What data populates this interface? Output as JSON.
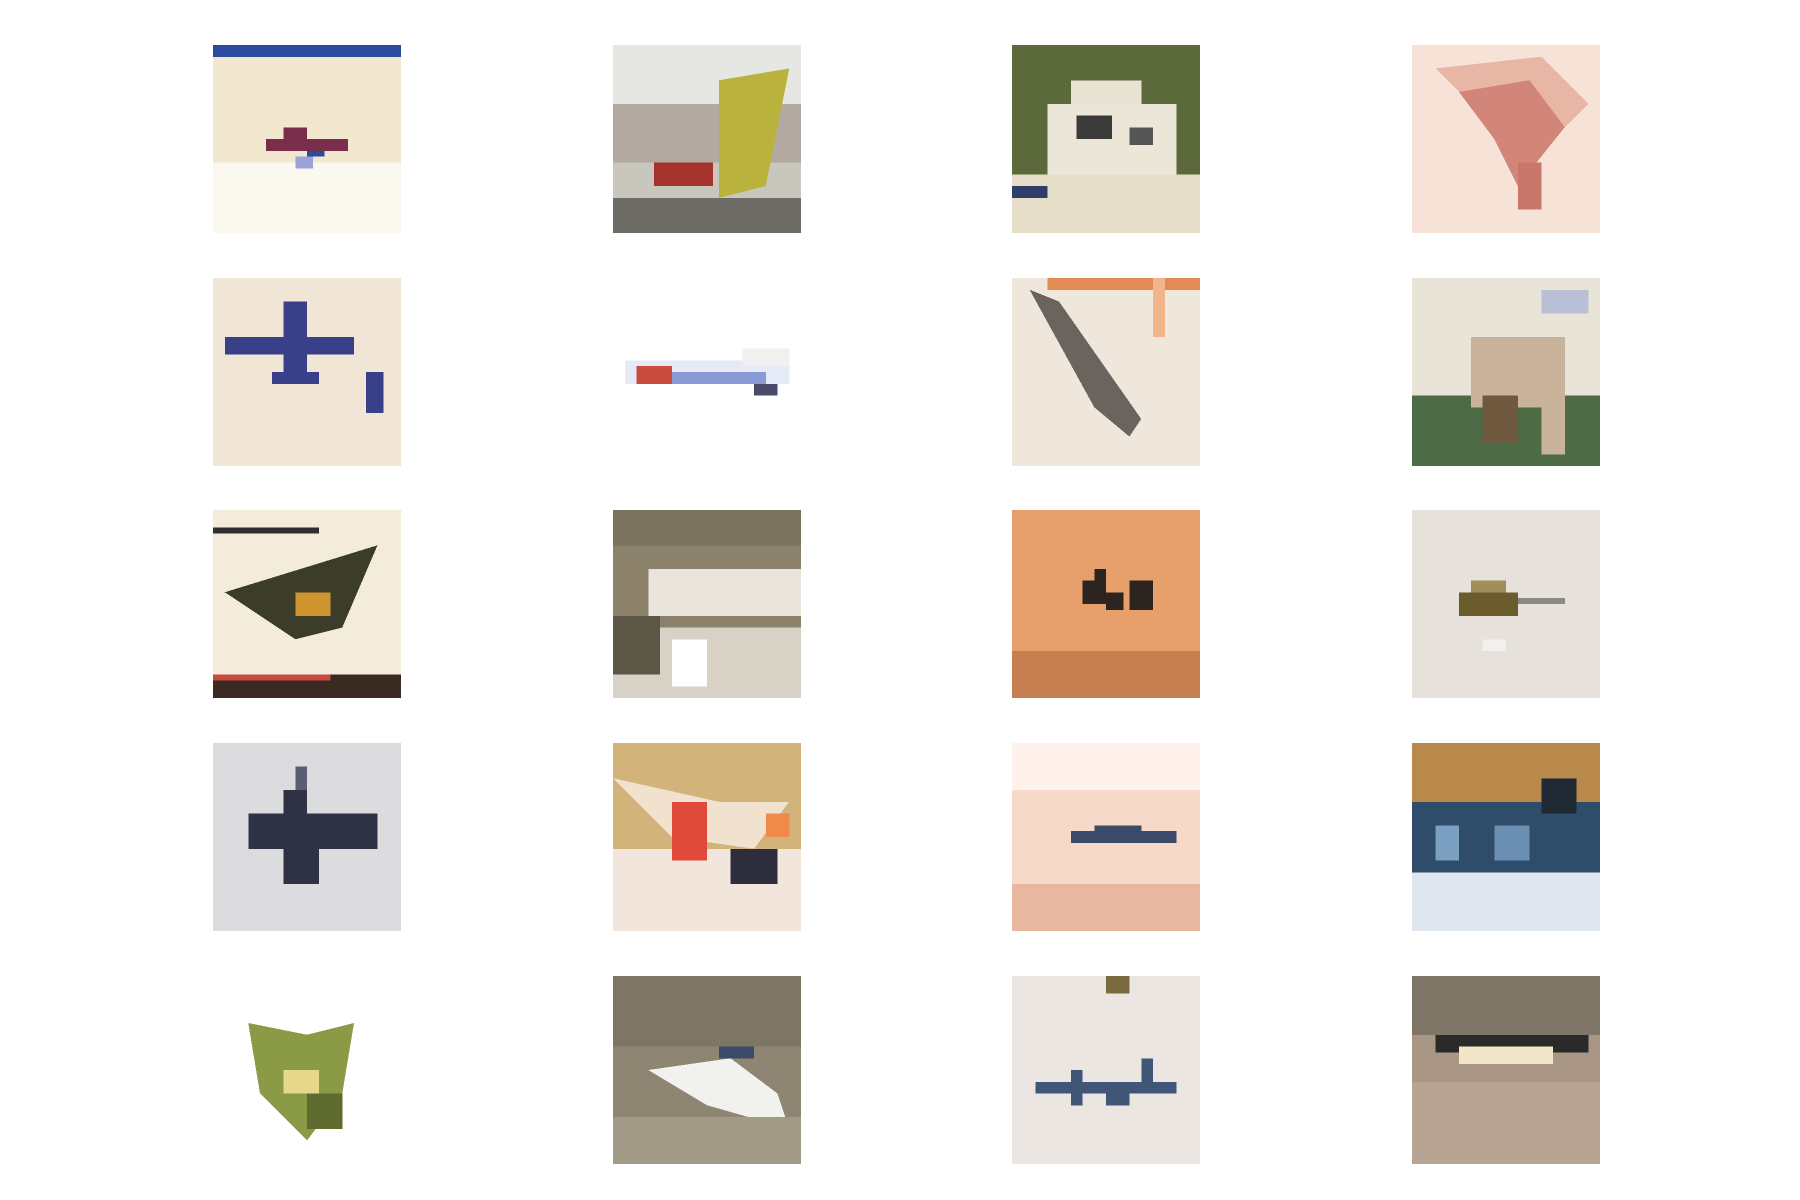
{
  "grid": {
    "rows": 5,
    "cols": 4,
    "tiles": [
      {
        "subject": "red-bird-on-sand",
        "bg": "#f1e8cf",
        "fg": "#7a2e4c",
        "accent": "#2c4a9e"
      },
      {
        "subject": "vehicle-street-scene",
        "bg": "#c9c6bd",
        "fg": "#b9b23c",
        "accent": "#a3332c"
      },
      {
        "subject": "white-house-on-hill",
        "bg": "#e6ddc8",
        "fg": "#5c6a3b",
        "accent": "#3b3b3b"
      },
      {
        "subject": "pink-feathers",
        "bg": "#f6e2d6",
        "fg": "#d2867a",
        "accent": "#e8b6a4"
      },
      {
        "subject": "blue-plane-silhouette",
        "bg": "#f1e6d6",
        "fg": "#3a3f8a",
        "accent": "#6a6fb0"
      },
      {
        "subject": "blurred-airplane-white",
        "bg": "#ffffff",
        "fg": "#8a9ad6",
        "accent": "#c84b3f"
      },
      {
        "subject": "diving-bird-gray",
        "bg": "#efe6dc",
        "fg": "#6b635d",
        "accent": "#e48a57"
      },
      {
        "subject": "animal-in-grass",
        "bg": "#e9e4d8",
        "fg": "#c9b39a",
        "accent": "#4d6b45"
      },
      {
        "subject": "dark-bird-wings",
        "bg": "#f3ecdc",
        "fg": "#3c3c2a",
        "accent": "#d0952e"
      },
      {
        "subject": "blurred-field-scene",
        "bg": "#8c826c",
        "fg": "#e9e5dc",
        "accent": "#5c5647"
      },
      {
        "subject": "birds-on-orange",
        "bg": "#e7a06b",
        "fg": "#2c241f",
        "accent": "#c57f50"
      },
      {
        "subject": "small-bug-on-gray",
        "bg": "#e6e1da",
        "fg": "#6b5c2e",
        "accent": "#a08f5a"
      },
      {
        "subject": "dark-plane-on-gray",
        "bg": "#dcdcde",
        "fg": "#2f3145",
        "accent": "#5b5e73"
      },
      {
        "subject": "colorful-bird-closeup",
        "bg": "#d2b37a",
        "fg": "#e04a3a",
        "accent": "#2d2d3d"
      },
      {
        "subject": "plane-on-pink-sky",
        "bg": "#f7d9ca",
        "fg": "#3c4a6a",
        "accent": "#e8b7a0"
      },
      {
        "subject": "harbor-buildings",
        "bg": "#b8894b",
        "fg": "#2f4c6b",
        "accent": "#dfe6ee"
      },
      {
        "subject": "green-yellow-bird",
        "bg": "#ffffff",
        "fg": "#8a9a45",
        "accent": "#e6d88a"
      },
      {
        "subject": "white-bird-flying",
        "bg": "#8e8672",
        "fg": "#f1f1ee",
        "accent": "#3a4a6a"
      },
      {
        "subject": "insect-on-white",
        "bg": "#ebe6e1",
        "fg": "#3f5676",
        "accent": "#7a6a3e"
      },
      {
        "subject": "ship-on-brown",
        "bg": "#a99684",
        "fg": "#2a2a2a",
        "accent": "#f2e6c8"
      }
    ]
  }
}
